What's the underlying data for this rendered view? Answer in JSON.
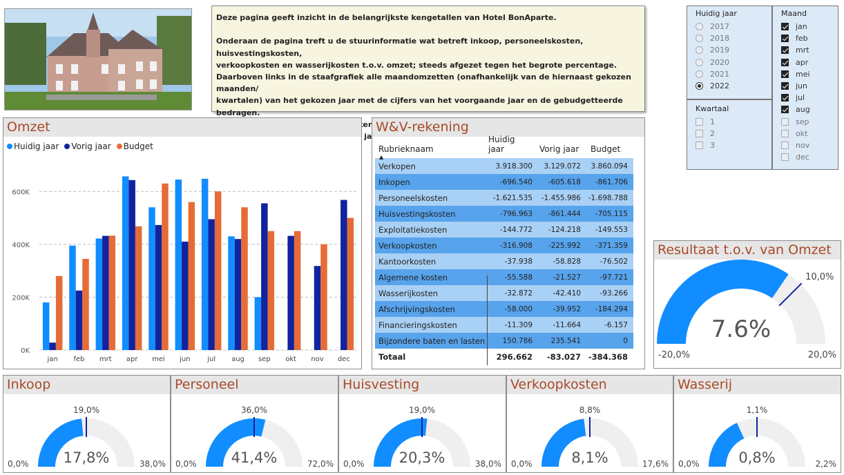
{
  "info": {
    "text": "Deze pagina geeft inzicht in de belangrijkste kengetallen van Hotel BonAparte.\n\nOnderaan de pagina treft u de stuurinformatie wat betreft inkoop, personeelskosten, huisvestingskosten,\nverkoopkosten en wasserijkosten t.o.v. omzet; steeds afgezet tegen het begrote percentage.\nDaarboven links in de staafgrafiek alle maandomzetten (onafhankelijk van de hiernaast gekozen maanden/\nkwartalen) van het gekozen jaar met de cijfers van het voorgaande jaar en de gebudgetteerde bedragen.\nCijfermatig daarnaast de W&V-rekening eveneens in vergelijking met voorgaand jaar en budget.\nTot slot het netto resultaat huidig jaar voor belastingen uitgedrukt in een percentage van de omzet."
  },
  "slicers": {
    "year": {
      "title": "Huidig jaar",
      "options": [
        "2017",
        "2018",
        "2019",
        "2020",
        "2021",
        "2022"
      ],
      "selected": "2022"
    },
    "quarter": {
      "title": "Kwartaal",
      "options": [
        "1",
        "2",
        "3"
      ]
    },
    "month": {
      "title": "Maand",
      "options": [
        "jan",
        "feb",
        "mrt",
        "apr",
        "mei",
        "jun",
        "jul",
        "aug",
        "sep",
        "okt",
        "nov",
        "dec"
      ],
      "checked": [
        true,
        true,
        true,
        true,
        true,
        true,
        true,
        true,
        false,
        false,
        false,
        false
      ]
    }
  },
  "omzet": {
    "title": "Omzet",
    "legend": [
      "Huidig jaar",
      "Vorig jaar",
      "Budget"
    ],
    "colors": {
      "huidig": "#118dff",
      "vorig": "#12239e",
      "budget": "#e66c37"
    }
  },
  "chart_data": {
    "type": "bar",
    "categories": [
      "jan",
      "feb",
      "mrt",
      "apr",
      "mei",
      "jun",
      "jul",
      "aug",
      "sep",
      "okt",
      "nov",
      "dec"
    ],
    "series": [
      {
        "name": "Huidig jaar",
        "values": [
          180000,
          395000,
          422000,
          657000,
          540000,
          645000,
          648000,
          430000,
          200000,
          0,
          0,
          0
        ]
      },
      {
        "name": "Vorig jaar",
        "values": [
          28000,
          225000,
          432000,
          643000,
          473000,
          410000,
          495000,
          420000,
          555000,
          432000,
          318000,
          568000
        ]
      },
      {
        "name": "Budget",
        "values": [
          280000,
          345000,
          433000,
          468000,
          630000,
          560000,
          600000,
          540000,
          450000,
          450000,
          400000,
          500000
        ]
      }
    ],
    "yticks": [
      "0K",
      "200K",
      "400K",
      "600K"
    ],
    "ylim": [
      0,
      700000
    ]
  },
  "wv": {
    "title": "W&V-rekening",
    "headers": [
      "Rubrieknaam",
      "Huidig jaar",
      "Vorig jaar",
      "Budget"
    ],
    "rows": [
      [
        "Verkopen",
        "3.918.300",
        "3.129.072",
        "3.860.094"
      ],
      [
        "Inkopen",
        "-696.540",
        "-605.618",
        "-861.706"
      ],
      [
        "Personeelskosten",
        "-1.621.535",
        "-1.455.986",
        "-1.698.788"
      ],
      [
        "Huisvestingskosten",
        "-796.963",
        "-861.444",
        "-705.115"
      ],
      [
        "Exploitatiekosten",
        "-144.772",
        "-124.218",
        "-149.553"
      ],
      [
        "Verkoopkosten",
        "-316.908",
        "-225.992",
        "-371.359"
      ],
      [
        "Kantoorkosten",
        "-37.938",
        "-58.828",
        "-76.502"
      ],
      [
        "Algemene kosten",
        "-55.588",
        "-21.527",
        "-97.721"
      ],
      [
        "Wasserijkosten",
        "-32.872",
        "-42.410",
        "-93.266"
      ],
      [
        "Afschrijvingskosten",
        "-58.000",
        "-39.952",
        "-184.294"
      ],
      [
        "Financieringskosten",
        "-11.309",
        "-11.664",
        "-6.157"
      ],
      [
        "Bijzondere baten en lasten",
        "150.786",
        "235.541",
        "0"
      ]
    ],
    "total": [
      "Totaal",
      "296.662",
      "-83.027",
      "-384.368"
    ]
  },
  "resultaat": {
    "title": "Resultaat t.o.v. van Omzet",
    "value": 7.6,
    "target": 10.0,
    "min": -20.0,
    "max": 20.0,
    "value_label": "7.6%",
    "target_label": "10,0%",
    "min_label": "-20,0%",
    "max_label": "20,0%"
  },
  "gauges": [
    {
      "title": "Inkoop",
      "value": 17.8,
      "target": 19.0,
      "min": 0,
      "max": 38.0,
      "value_label": "17,8%",
      "target_label": "19,0%",
      "min_label": "0,0%",
      "max_label": "38,0%"
    },
    {
      "title": "Personeel",
      "value": 41.4,
      "target": 36.0,
      "min": 0,
      "max": 72.0,
      "value_label": "41,4%",
      "target_label": "36,0%",
      "min_label": "0,0%",
      "max_label": "72,0%"
    },
    {
      "title": "Huisvesting",
      "value": 20.3,
      "target": 19.0,
      "min": 0,
      "max": 38.0,
      "value_label": "20,3%",
      "target_label": "19,0%",
      "min_label": "0,0%",
      "max_label": "38,0%"
    },
    {
      "title": "Verkoopkosten",
      "value": 8.1,
      "target": 8.8,
      "min": 0,
      "max": 17.6,
      "value_label": "8,1%",
      "target_label": "8,8%",
      "min_label": "0,0%",
      "max_label": "17,6%"
    },
    {
      "title": "Wasserij",
      "value": 0.8,
      "target": 1.1,
      "min": 0,
      "max": 2.2,
      "value_label": "0,8%",
      "target_label": "1,1%",
      "min_label": "0,0%",
      "max_label": "2,2%"
    }
  ],
  "gauge_colors": {
    "fill": "#118dff",
    "track": "#efefef",
    "target": "#12239e"
  }
}
